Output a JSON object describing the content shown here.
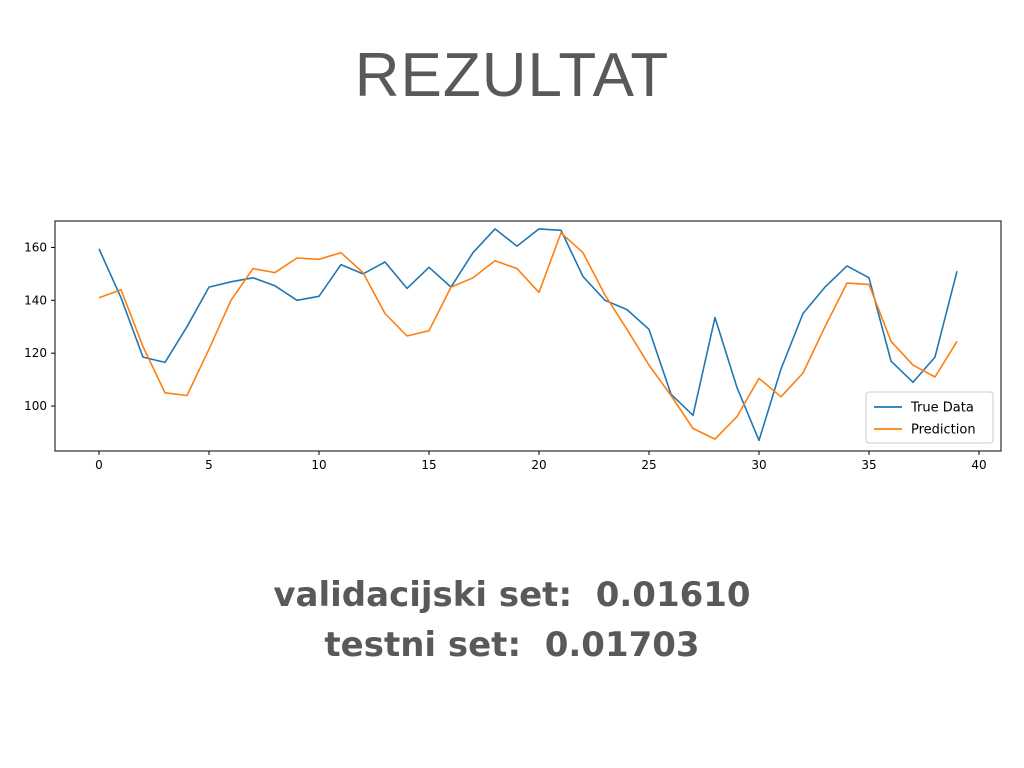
{
  "slide": {
    "title": "REZULTAT",
    "metrics": [
      {
        "label": "validacijski set:",
        "value": "0.01610"
      },
      {
        "label": "testni set:",
        "value": "0.01703"
      }
    ]
  },
  "chart_data": {
    "type": "line",
    "x": [
      0,
      1,
      2,
      3,
      4,
      5,
      6,
      7,
      8,
      9,
      10,
      11,
      12,
      13,
      14,
      15,
      16,
      17,
      18,
      19,
      20,
      21,
      22,
      23,
      24,
      25,
      26,
      27,
      28,
      29,
      30,
      31,
      32,
      33,
      34,
      35,
      36,
      37,
      38,
      39
    ],
    "series": [
      {
        "name": "True Data",
        "color": "#1f77b4",
        "values": [
          159.5,
          141,
          118.5,
          116.5,
          130,
          145,
          147,
          148.5,
          145.5,
          140,
          141.5,
          153.5,
          150,
          154.5,
          144.5,
          152.5,
          145,
          158,
          167,
          160.5,
          167,
          166.5,
          149,
          140,
          136.5,
          129,
          104.5,
          96.5,
          133.5,
          107,
          87,
          114,
          135,
          145,
          153,
          148.5,
          117,
          109,
          118.5,
          151
        ]
      },
      {
        "name": "Prediction",
        "color": "#ff7f0e",
        "values": [
          141,
          144,
          122.5,
          105,
          104,
          121.5,
          140,
          152,
          150.5,
          156,
          155.5,
          158,
          150.5,
          135,
          126.5,
          128.5,
          145,
          148.5,
          155,
          152,
          143,
          165.5,
          158,
          142,
          129,
          115.5,
          104,
          91.5,
          87.5,
          96,
          110.5,
          103.5,
          112.5,
          130,
          146.5,
          146,
          124.5,
          115.5,
          111,
          124.5
        ]
      }
    ],
    "xlim": [
      -2,
      41
    ],
    "ylim": [
      83,
      170
    ],
    "xticks": [
      0,
      5,
      10,
      15,
      20,
      25,
      30,
      35,
      40
    ],
    "yticks": [
      100,
      120,
      140,
      160
    ],
    "legend": "lower-right",
    "grid": false
  }
}
